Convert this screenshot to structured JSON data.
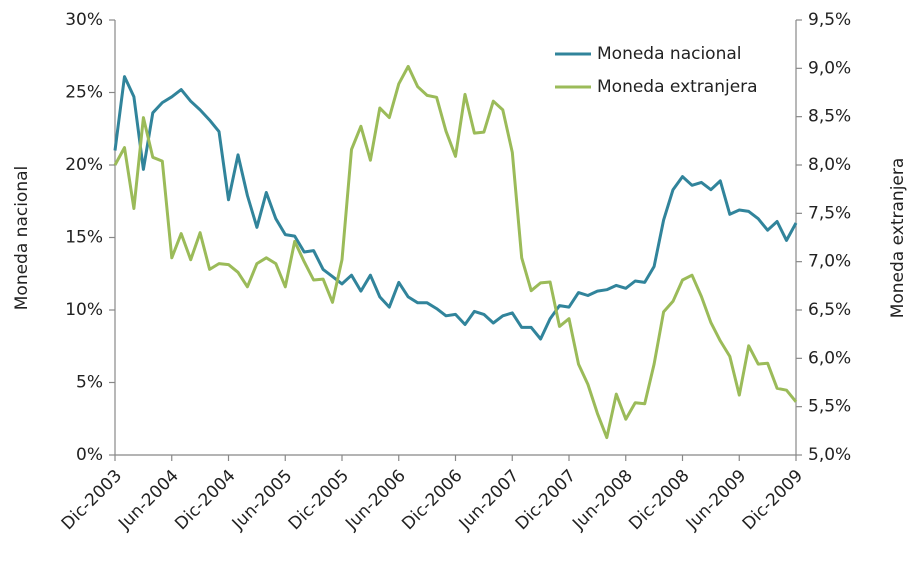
{
  "chart_data": {
    "type": "line",
    "y_label": "Moneda nacional",
    "y2_label": "Moneda extranjera",
    "categories": [
      "Dic-2003",
      null,
      null,
      null,
      null,
      null,
      "Jun-2004",
      null,
      null,
      null,
      null,
      null,
      "Dic-2004",
      null,
      null,
      null,
      null,
      null,
      "Jun-2005",
      null,
      null,
      null,
      null,
      null,
      "Dic-2005",
      null,
      null,
      null,
      null,
      null,
      "Jun-2006",
      null,
      null,
      null,
      null,
      null,
      "Dic-2006",
      null,
      null,
      null,
      null,
      null,
      "Jun-2007",
      null,
      null,
      null,
      null,
      null,
      "Dic-2007",
      null,
      null,
      null,
      null,
      null,
      "Jun-2008",
      null,
      null,
      null,
      null,
      null,
      "Dic-2008",
      null,
      null,
      null,
      null,
      null,
      "Jun-2009",
      null,
      null,
      null,
      null,
      null,
      "Dic-2009"
    ],
    "series": [
      {
        "name": "Moneda nacional",
        "color": "#31849b",
        "axis": "y",
        "values": [
          21.0,
          26.1,
          24.7,
          19.7,
          23.6,
          24.3,
          24.7,
          25.2,
          24.4,
          23.8,
          23.1,
          22.3,
          17.6,
          20.7,
          17.9,
          15.7,
          18.1,
          16.3,
          15.2,
          15.1,
          14.0,
          14.1,
          12.8,
          12.3,
          11.8,
          12.4,
          11.3,
          12.4,
          10.9,
          10.2,
          11.9,
          10.9,
          10.5,
          10.5,
          10.1,
          9.6,
          9.7,
          9.0,
          9.9,
          9.7,
          9.1,
          9.6,
          9.8,
          8.8,
          8.8,
          8.0,
          9.4,
          10.3,
          10.2,
          11.2,
          11.0,
          11.3,
          11.4,
          11.7,
          11.5,
          12.0,
          11.9,
          13.0,
          16.2,
          18.3,
          19.2,
          18.6,
          18.8,
          18.3,
          18.9,
          16.6,
          16.9,
          16.8,
          16.3,
          15.5,
          16.1,
          14.8,
          16.0
        ]
      },
      {
        "name": "Moneda extranjera",
        "color": "#9bbb59",
        "axis": "y2",
        "values": [
          8.0,
          8.18,
          7.55,
          8.49,
          8.08,
          8.04,
          7.04,
          7.29,
          7.02,
          7.3,
          6.92,
          6.98,
          6.97,
          6.89,
          6.74,
          6.98,
          7.04,
          6.98,
          6.74,
          7.21,
          7.0,
          6.81,
          6.82,
          6.58,
          7.02,
          8.16,
          8.4,
          8.05,
          8.59,
          8.49,
          8.84,
          9.02,
          8.81,
          8.72,
          8.7,
          8.35,
          8.09,
          8.73,
          8.33,
          8.34,
          8.66,
          8.57,
          8.13,
          7.04,
          6.7,
          6.78,
          6.79,
          6.33,
          6.41,
          5.94,
          5.73,
          5.43,
          5.18,
          5.63,
          5.37,
          5.54,
          5.53,
          5.94,
          6.48,
          6.59,
          6.81,
          6.86,
          6.64,
          6.37,
          6.18,
          6.02,
          5.62,
          6.13,
          5.94,
          5.95,
          5.69,
          5.67,
          5.55
        ]
      }
    ],
    "ylim": [
      0,
      30
    ],
    "yticks": [
      {
        "value": 0,
        "label": "0%"
      },
      {
        "value": 5,
        "label": "5%"
      },
      {
        "value": 10,
        "label": "10%"
      },
      {
        "value": 15,
        "label": "15%"
      },
      {
        "value": 20,
        "label": "20%"
      },
      {
        "value": 25,
        "label": "25%"
      },
      {
        "value": 30,
        "label": "30%"
      }
    ],
    "y2lim": [
      5,
      9.5
    ],
    "y2ticks": [
      {
        "value": 5,
        "label": "5,0%"
      },
      {
        "value": 5.5,
        "label": "5,5%"
      },
      {
        "value": 6,
        "label": "6,0%"
      },
      {
        "value": 6.5,
        "label": "6,5%"
      },
      {
        "value": 7,
        "label": "7,0%"
      },
      {
        "value": 7.5,
        "label": "7,5%"
      },
      {
        "value": 8,
        "label": "8,0%"
      },
      {
        "value": 8.5,
        "label": "8,5%"
      },
      {
        "value": 9,
        "label": "9,0%"
      },
      {
        "value": 9.5,
        "label": "9,5%"
      }
    ],
    "grid": false,
    "legend": "upper right"
  }
}
